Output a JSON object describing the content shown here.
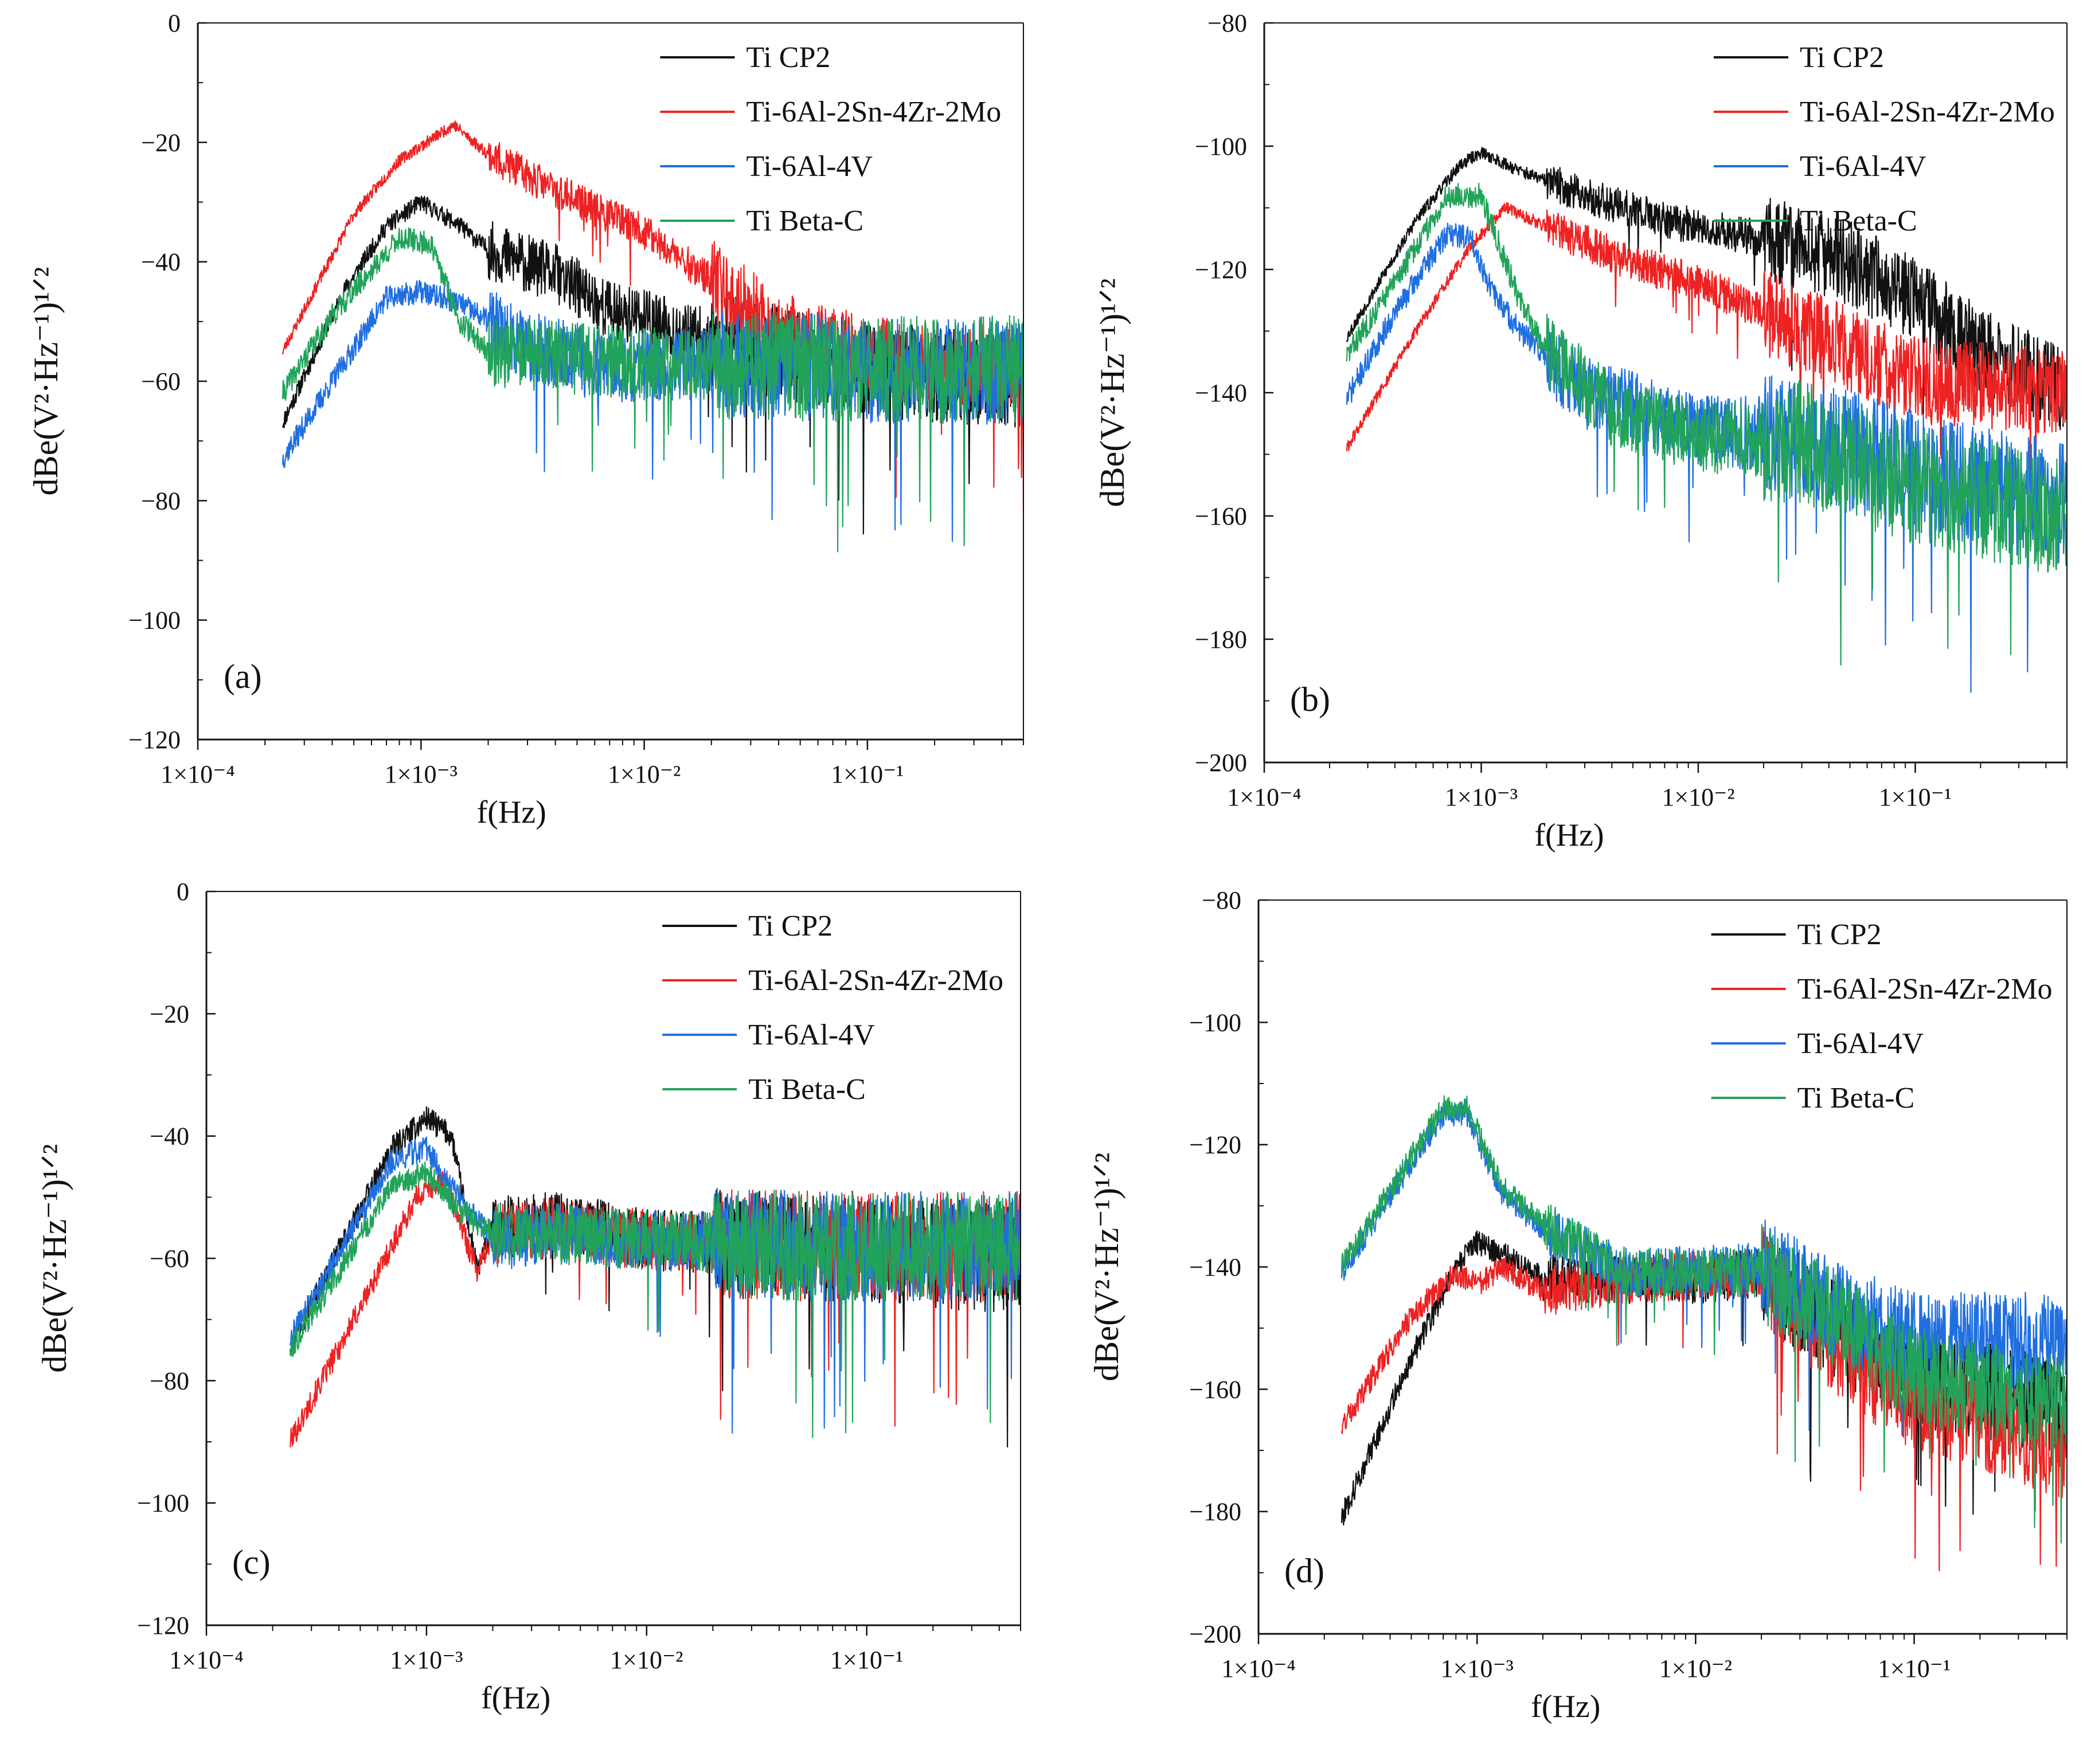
{
  "series_colors": [
    "#111111",
    "#ee2222",
    "#1f6fe0",
    "#22a35a"
  ],
  "legend_labels": [
    "Ti CP2",
    "Ti-6Al-2Sn-4Zr-2Mo",
    "Ti-6Al-4V",
    "Ti Beta-C"
  ],
  "chart_data": [
    {
      "type": "line",
      "panel_label": "(a)",
      "xlabel": "f(Hz)",
      "ylabel": "dBe(V²·Hz⁻¹)¹ᐟ²",
      "x_scale": "log",
      "xlim": [
        0.0001,
        0.5
      ],
      "ylim": [
        -120,
        0
      ],
      "x_ticks": [
        "1×10⁻⁴",
        "1×10⁻³",
        "1×10⁻²",
        "1×10⁻¹"
      ],
      "y_ticks": [
        "0",
        "−20",
        "−40",
        "−60",
        "−80",
        "−100",
        "−120"
      ],
      "legend_position": "top-right",
      "series": [
        {
          "name": "Ti CP2",
          "color": "#111111",
          "anchors": [
            [
              0.00024,
              -67
            ],
            [
              0.00045,
              -45
            ],
            [
              0.0007,
              -34
            ],
            [
              0.001,
              -30
            ],
            [
              0.0015,
              -34
            ],
            [
              0.002,
              -38
            ],
            [
              0.004,
              -42
            ],
            [
              0.007,
              -48
            ],
            [
              0.02,
              -53
            ],
            [
              0.05,
              -56
            ],
            [
              0.1,
              -58
            ],
            [
              0.5,
              -60
            ]
          ],
          "noise": [
            1.5,
            5,
            8
          ],
          "seed": 11
        },
        {
          "name": "Ti-6Al-2Sn-4Zr-2Mo",
          "color": "#ee2222",
          "anchors": [
            [
              0.00024,
              -55
            ],
            [
              0.0005,
              -32
            ],
            [
              0.0008,
              -23
            ],
            [
              0.0014,
              -17
            ],
            [
              0.002,
              -22
            ],
            [
              0.004,
              -28
            ],
            [
              0.01,
              -35
            ],
            [
              0.02,
              -43
            ],
            [
              0.04,
              -52
            ],
            [
              0.1,
              -56
            ],
            [
              0.5,
              -58
            ]
          ],
          "noise": [
            1,
            3,
            7
          ],
          "seed": 23
        },
        {
          "name": "Ti-6Al-4V",
          "color": "#1f6fe0",
          "anchors": [
            [
              0.00024,
              -73
            ],
            [
              0.0004,
              -60
            ],
            [
              0.0007,
              -46
            ],
            [
              0.001,
              -45
            ],
            [
              0.0015,
              -47
            ],
            [
              0.002,
              -50
            ],
            [
              0.003,
              -54
            ],
            [
              0.007,
              -58
            ],
            [
              0.02,
              -57
            ],
            [
              0.1,
              -58
            ],
            [
              0.5,
              -59
            ]
          ],
          "noise": [
            2,
            6,
            9
          ],
          "seed": 37
        },
        {
          "name": "Ti Beta-C",
          "color": "#22a35a",
          "anchors": [
            [
              0.00024,
              -62
            ],
            [
              0.0004,
              -49
            ],
            [
              0.0008,
              -36
            ],
            [
              0.0011,
              -37
            ],
            [
              0.0015,
              -50
            ],
            [
              0.002,
              -55
            ],
            [
              0.004,
              -56
            ],
            [
              0.01,
              -57
            ],
            [
              0.1,
              -58
            ],
            [
              0.5,
              -58
            ]
          ],
          "noise": [
            2,
            6,
            9
          ],
          "seed": 41
        }
      ]
    },
    {
      "type": "line",
      "panel_label": "(b)",
      "xlabel": "f(Hz)",
      "ylabel": "dBe(V²·Hz⁻¹)¹ᐟ²",
      "x_scale": "log",
      "xlim": [
        0.0001,
        0.5
      ],
      "ylim": [
        -200,
        -80
      ],
      "x_ticks": [
        "1×10⁻⁴",
        "1×10⁻³",
        "1×10⁻²",
        "1×10⁻¹"
      ],
      "y_ticks": [
        "−80",
        "−100",
        "−120",
        "−140",
        "−160",
        "−180",
        "−200"
      ],
      "legend_position": "top-right",
      "series": [
        {
          "name": "Ti CP2",
          "color": "#111111",
          "anchors": [
            [
              0.00024,
              -131
            ],
            [
              0.0005,
              -112
            ],
            [
              0.0008,
              -103
            ],
            [
              0.001,
              -101
            ],
            [
              0.0015,
              -104
            ],
            [
              0.003,
              -108
            ],
            [
              0.007,
              -112
            ],
            [
              0.02,
              -115
            ],
            [
              0.05,
              -119
            ],
            [
              0.1,
              -125
            ],
            [
              0.2,
              -133
            ],
            [
              0.5,
              -140
            ]
          ],
          "noise": [
            1,
            3,
            7
          ],
          "seed": 53
        },
        {
          "name": "Ti-6Al-2Sn-4Zr-2Mo",
          "color": "#ee2222",
          "anchors": [
            [
              0.00024,
              -149
            ],
            [
              0.0005,
              -130
            ],
            [
              0.0009,
              -116
            ],
            [
              0.0013,
              -110
            ],
            [
              0.002,
              -113
            ],
            [
              0.005,
              -119
            ],
            [
              0.01,
              -122
            ],
            [
              0.02,
              -127
            ],
            [
              0.05,
              -133
            ],
            [
              0.1,
              -138
            ],
            [
              0.5,
              -140
            ]
          ],
          "noise": [
            1,
            3,
            7
          ],
          "seed": 61
        },
        {
          "name": "Ti-6Al-4V",
          "color": "#1f6fe0",
          "anchors": [
            [
              0.00024,
              -141
            ],
            [
              0.0004,
              -127
            ],
            [
              0.0007,
              -114
            ],
            [
              0.0009,
              -115
            ],
            [
              0.0011,
              -123
            ],
            [
              0.0015,
              -130
            ],
            [
              0.003,
              -140
            ],
            [
              0.01,
              -146
            ],
            [
              0.03,
              -147
            ],
            [
              0.1,
              -153
            ],
            [
              0.5,
              -158
            ]
          ],
          "noise": [
            2,
            6,
            10
          ],
          "seed": 71
        },
        {
          "name": "Ti Beta-C",
          "color": "#22a35a",
          "anchors": [
            [
              0.00024,
              -134
            ],
            [
              0.0004,
              -122
            ],
            [
              0.0007,
              -108
            ],
            [
              0.001,
              -108
            ],
            [
              0.0015,
              -125
            ],
            [
              0.002,
              -133
            ],
            [
              0.004,
              -143
            ],
            [
              0.01,
              -147
            ],
            [
              0.03,
              -148
            ],
            [
              0.1,
              -155
            ],
            [
              0.5,
              -160
            ]
          ],
          "noise": [
            2,
            6,
            10
          ],
          "seed": 83
        }
      ]
    },
    {
      "type": "line",
      "panel_label": "(c)",
      "xlabel": "f(Hz)",
      "ylabel": "dBe(V²·Hz⁻¹)¹ᐟ²",
      "x_scale": "log",
      "xlim": [
        0.0001,
        0.5
      ],
      "ylim": [
        -120,
        0
      ],
      "x_ticks": [
        "1×10⁻⁴",
        "1×10⁻³",
        "1×10⁻²",
        "1×10⁻¹"
      ],
      "y_ticks": [
        "0",
        "−20",
        "−40",
        "−60",
        "−80",
        "−100",
        "−120"
      ],
      "legend_position": "top-right",
      "series": [
        {
          "name": "Ti CP2",
          "color": "#111111",
          "anchors": [
            [
              0.00024,
              -74
            ],
            [
              0.0007,
              -42
            ],
            [
              0.001,
              -37
            ],
            [
              0.0013,
              -40
            ],
            [
              0.0017,
              -62
            ],
            [
              0.002,
              -55
            ],
            [
              0.004,
              -54
            ],
            [
              0.01,
              -57
            ],
            [
              0.05,
              -58
            ],
            [
              0.5,
              -60
            ]
          ],
          "noise": [
            2,
            5,
            9
          ],
          "seed": 97
        },
        {
          "name": "Ti-6Al-2Sn-4Zr-2Mo",
          "color": "#ee2222",
          "anchors": [
            [
              0.00024,
              -90
            ],
            [
              0.0005,
              -68
            ],
            [
              0.0009,
              -50
            ],
            [
              0.0012,
              -47
            ],
            [
              0.0017,
              -62
            ],
            [
              0.002,
              -56
            ],
            [
              0.004,
              -55
            ],
            [
              0.01,
              -57
            ],
            [
              0.05,
              -58
            ],
            [
              0.5,
              -58
            ]
          ],
          "noise": [
            2,
            5,
            9
          ],
          "seed": 101
        },
        {
          "name": "Ti-6Al-4V",
          "color": "#1f6fe0",
          "anchors": [
            [
              0.00024,
              -73
            ],
            [
              0.0007,
              -44
            ],
            [
              0.001,
              -42
            ],
            [
              0.0014,
              -50
            ],
            [
              0.002,
              -57
            ],
            [
              0.004,
              -56
            ],
            [
              0.01,
              -57
            ],
            [
              0.05,
              -58
            ],
            [
              0.5,
              -58
            ]
          ],
          "noise": [
            2,
            5,
            9
          ],
          "seed": 109
        },
        {
          "name": "Ti Beta-C",
          "color": "#22a35a",
          "anchors": [
            [
              0.00024,
              -75
            ],
            [
              0.0007,
              -48
            ],
            [
              0.001,
              -46
            ],
            [
              0.0014,
              -52
            ],
            [
              0.002,
              -56
            ],
            [
              0.004,
              -56
            ],
            [
              0.01,
              -57
            ],
            [
              0.05,
              -58
            ],
            [
              0.5,
              -58
            ]
          ],
          "noise": [
            2,
            5,
            9
          ],
          "seed": 113
        }
      ]
    },
    {
      "type": "line",
      "panel_label": "(d)",
      "xlabel": "f(Hz)",
      "ylabel": "dBe(V²·Hz⁻¹)¹ᐟ²",
      "x_scale": "log",
      "xlim": [
        0.0001,
        0.5
      ],
      "ylim": [
        -200,
        -80
      ],
      "x_ticks": [
        "1×10⁻⁴",
        "1×10⁻³",
        "1×10⁻²",
        "1×10⁻¹"
      ],
      "y_ticks": [
        "−80",
        "−100",
        "−120",
        "−140",
        "−160",
        "−180",
        "−200"
      ],
      "legend_position": "top-right",
      "series": [
        {
          "name": "Ti CP2",
          "color": "#111111",
          "anchors": [
            [
              0.00024,
              -181
            ],
            [
              0.0005,
              -155
            ],
            [
              0.0008,
              -140
            ],
            [
              0.001,
              -136
            ],
            [
              0.0015,
              -139
            ],
            [
              0.002,
              -142
            ],
            [
              0.005,
              -142
            ],
            [
              0.01,
              -142
            ],
            [
              0.02,
              -141
            ],
            [
              0.05,
              -152
            ],
            [
              0.1,
              -158
            ],
            [
              0.5,
              -163
            ]
          ],
          "noise": [
            2,
            4,
            8
          ],
          "seed": 127
        },
        {
          "name": "Ti-6Al-2Sn-4Zr-2Mo",
          "color": "#ee2222",
          "anchors": [
            [
              0.00024,
              -166
            ],
            [
              0.0005,
              -148
            ],
            [
              0.0008,
              -141
            ],
            [
              0.001,
              -143
            ],
            [
              0.0013,
              -140
            ],
            [
              0.002,
              -144
            ],
            [
              0.005,
              -142
            ],
            [
              0.02,
              -141
            ],
            [
              0.05,
              -155
            ],
            [
              0.1,
              -162
            ],
            [
              0.5,
              -170
            ]
          ],
          "noise": [
            2,
            4,
            8
          ],
          "seed": 131
        },
        {
          "name": "Ti-6Al-4V",
          "color": "#1f6fe0",
          "anchors": [
            [
              0.00024,
              -141
            ],
            [
              0.0005,
              -123
            ],
            [
              0.0007,
              -115
            ],
            [
              0.0009,
              -115
            ],
            [
              0.0013,
              -128
            ],
            [
              0.002,
              -134
            ],
            [
              0.005,
              -141
            ],
            [
              0.02,
              -140
            ],
            [
              0.05,
              -148
            ],
            [
              0.1,
              -152
            ],
            [
              0.5,
              -152
            ]
          ],
          "noise": [
            2,
            4,
            8
          ],
          "seed": 137
        },
        {
          "name": "Ti Beta-C",
          "color": "#22a35a",
          "anchors": [
            [
              0.00024,
              -140
            ],
            [
              0.0005,
              -122
            ],
            [
              0.0007,
              -114
            ],
            [
              0.0009,
              -114
            ],
            [
              0.0013,
              -127
            ],
            [
              0.002,
              -133
            ],
            [
              0.005,
              -141
            ],
            [
              0.02,
              -141
            ],
            [
              0.05,
              -150
            ],
            [
              0.1,
              -158
            ],
            [
              0.5,
              -163
            ]
          ],
          "noise": [
            2,
            4,
            8
          ],
          "seed": 139
        }
      ]
    }
  ]
}
